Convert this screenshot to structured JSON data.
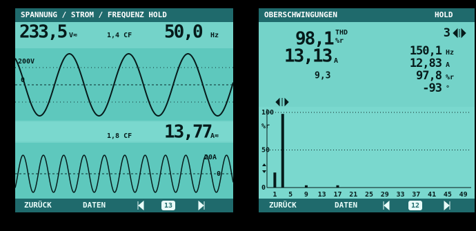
{
  "left": {
    "header": "SPANNUNG / STROM / FREQUENZ HOLD",
    "voltage": {
      "value": "233,5",
      "unit": "V≂",
      "cf": "1,4 CF",
      "frequency": "50,0",
      "frequency_unit": "Hz"
    },
    "wave_1": {
      "scale": "200V",
      "zero": "0"
    },
    "current": {
      "cf": "1,8 CF",
      "value": "13,77",
      "unit": "A≂"
    },
    "wave_2": {
      "scale": "20A",
      "zero": "0"
    },
    "footer": {
      "back": "ZURÜCK",
      "data": "DATEN",
      "page": "13"
    }
  },
  "right": {
    "header": "OBERSCHWINGUNGEN",
    "hold": "HOLD",
    "thd": {
      "value": "98,1",
      "label": "THD",
      "unit": "%r"
    },
    "current": {
      "value": "13,13",
      "unit": "A"
    },
    "cf": "9,3",
    "harmonic": "3",
    "frequency": {
      "value": "150,1",
      "unit": "Hz"
    },
    "harmonic_current": {
      "value": "12,83",
      "unit": "A"
    },
    "harmonic_percent": {
      "value": "97,8",
      "unit": "%r"
    },
    "phase": {
      "value": "-93",
      "unit": "°"
    },
    "chart_data": {
      "type": "bar",
      "y_unit": "%r",
      "x": [
        1,
        3,
        9,
        17
      ],
      "values": [
        20,
        98,
        3,
        3
      ],
      "xlim": [
        -1,
        51
      ],
      "xticks": [
        1,
        5,
        9,
        13,
        17,
        21,
        25,
        29,
        33,
        37,
        41,
        45,
        49
      ],
      "ylim": [
        0,
        100
      ],
      "yticks": [
        0,
        50,
        100
      ],
      "color": "#061a1a"
    },
    "footer": {
      "back": "ZURÜCK",
      "data": "DATEN",
      "page": "12"
    }
  }
}
